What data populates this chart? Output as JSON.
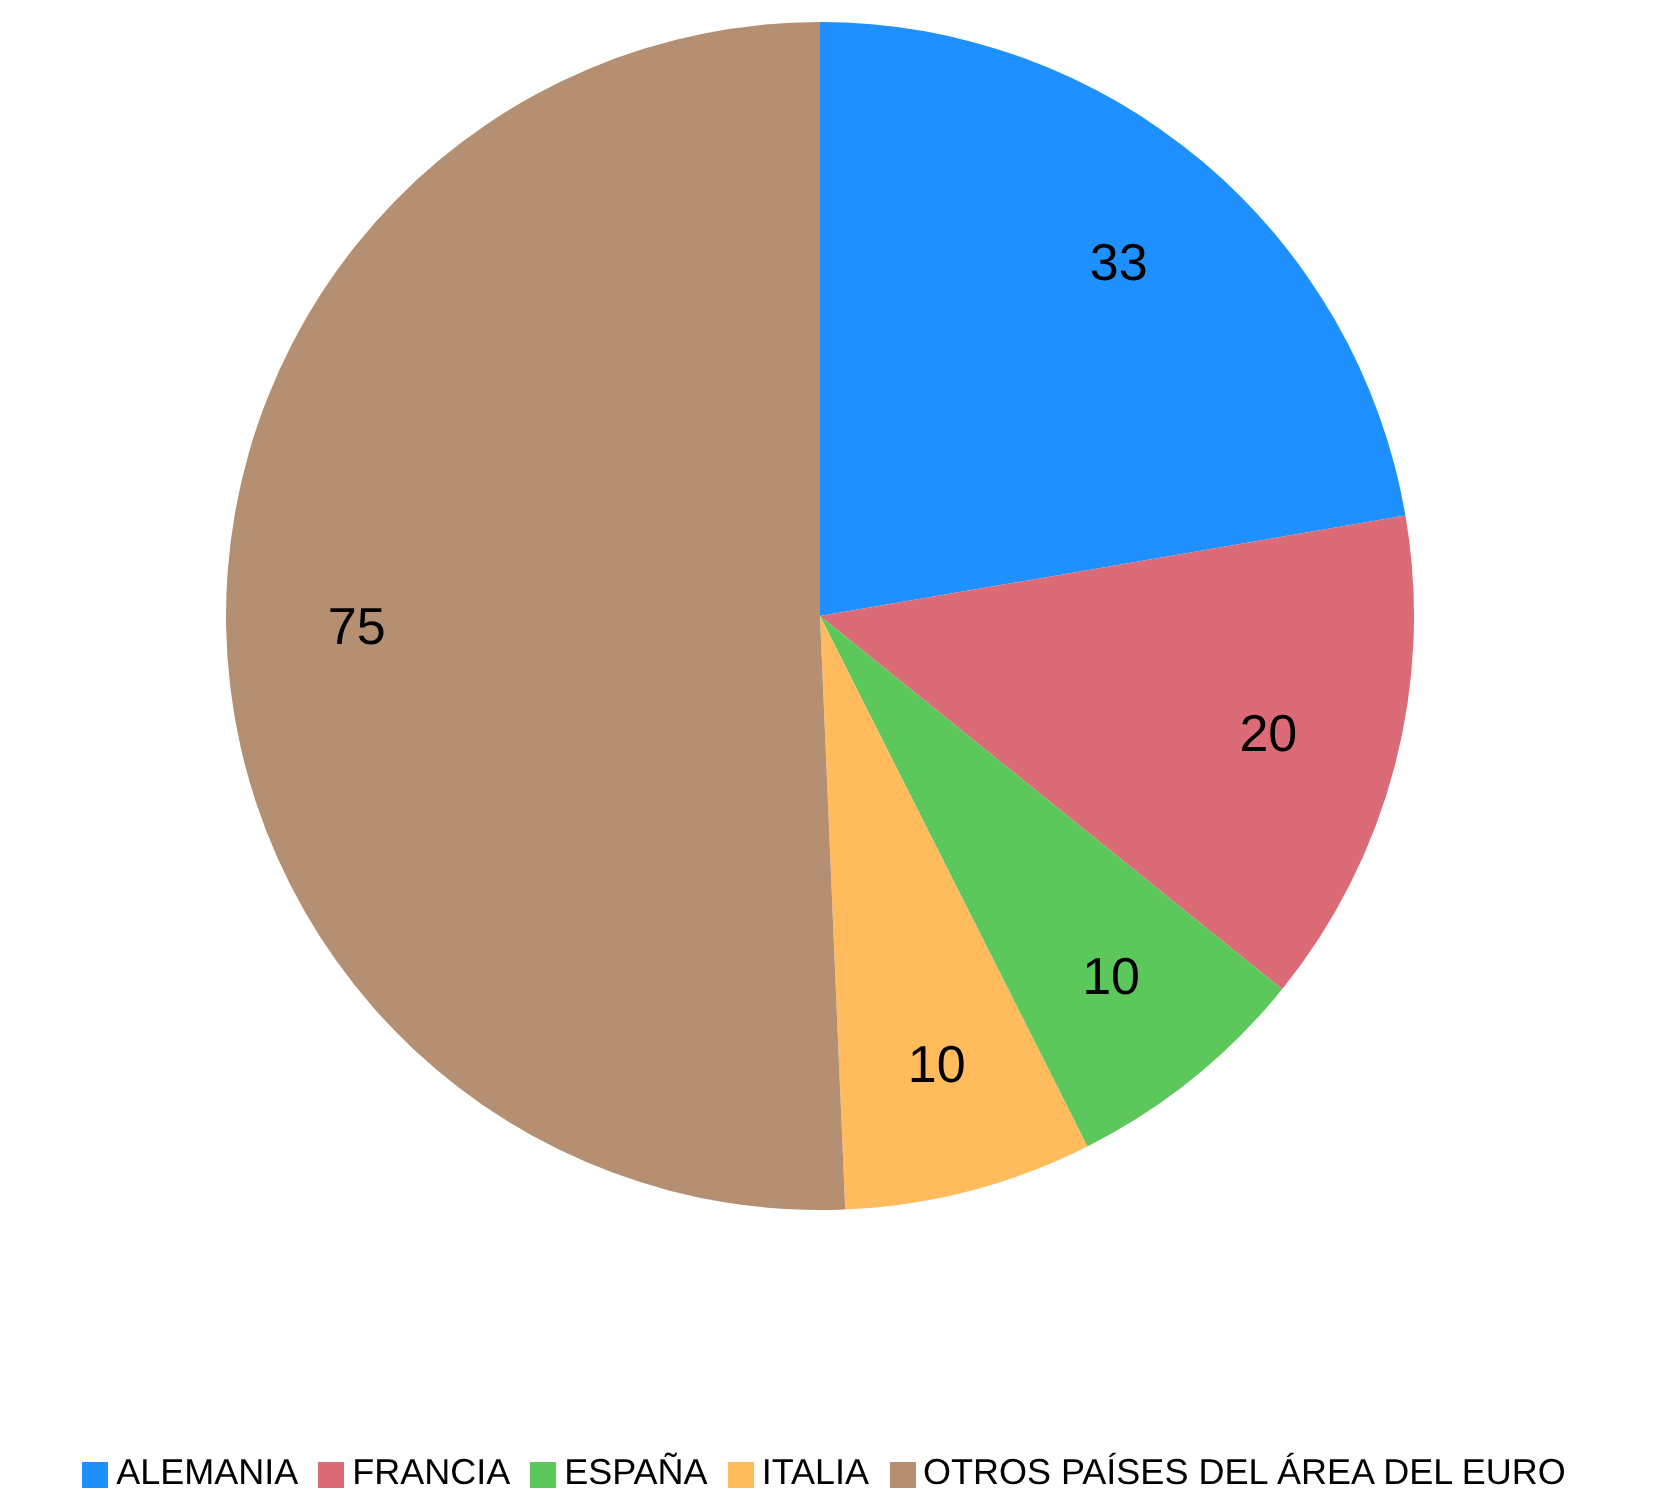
{
  "chart_data": {
    "type": "pie",
    "categories": [
      "ALEMANIA",
      "FRANCIA",
      "ESPAÑA",
      "ITALIA",
      "OTROS PAÍSES DEL ÁREA DEL EURO"
    ],
    "values": [
      33,
      20,
      10,
      10,
      75
    ],
    "colors": [
      "#1e90ff",
      "#dc6b78",
      "#5cc85c",
      "#ffbb5c",
      "#b58f72"
    ],
    "data_labels": true,
    "legend": "bottom"
  }
}
